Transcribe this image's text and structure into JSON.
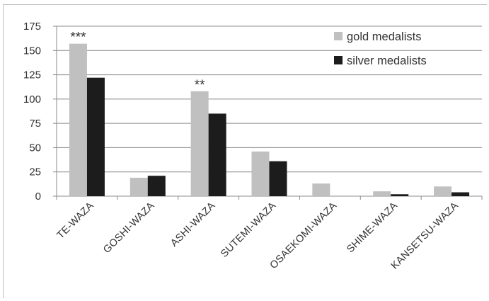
{
  "chart_data": {
    "type": "bar",
    "categories": [
      "TE-WAZA",
      "GOSHI-WAZA",
      "ASHI-WAZA",
      "SUTEMI-WAZA",
      "OSAEKOMI-WAZA",
      "SHIME-WAZA",
      "KANSETSU-WAZA"
    ],
    "series": [
      {
        "name": "gold medalists",
        "color": "#c0c0c0",
        "values": [
          157,
          19,
          108,
          46,
          13,
          5,
          10
        ]
      },
      {
        "name": "silver medalists",
        "color": "#1c1c1c",
        "values": [
          122,
          21,
          85,
          36,
          0,
          2,
          4
        ]
      }
    ],
    "annotations": [
      {
        "category": "TE-WAZA",
        "text": "***"
      },
      {
        "category": "ASHI-WAZA",
        "text": "**"
      }
    ],
    "yticks": [
      "0",
      "25",
      "50",
      "75",
      "100",
      "125",
      "150",
      "175"
    ],
    "ylim": [
      0,
      175
    ],
    "grid": true,
    "legend_position": "top-right"
  }
}
